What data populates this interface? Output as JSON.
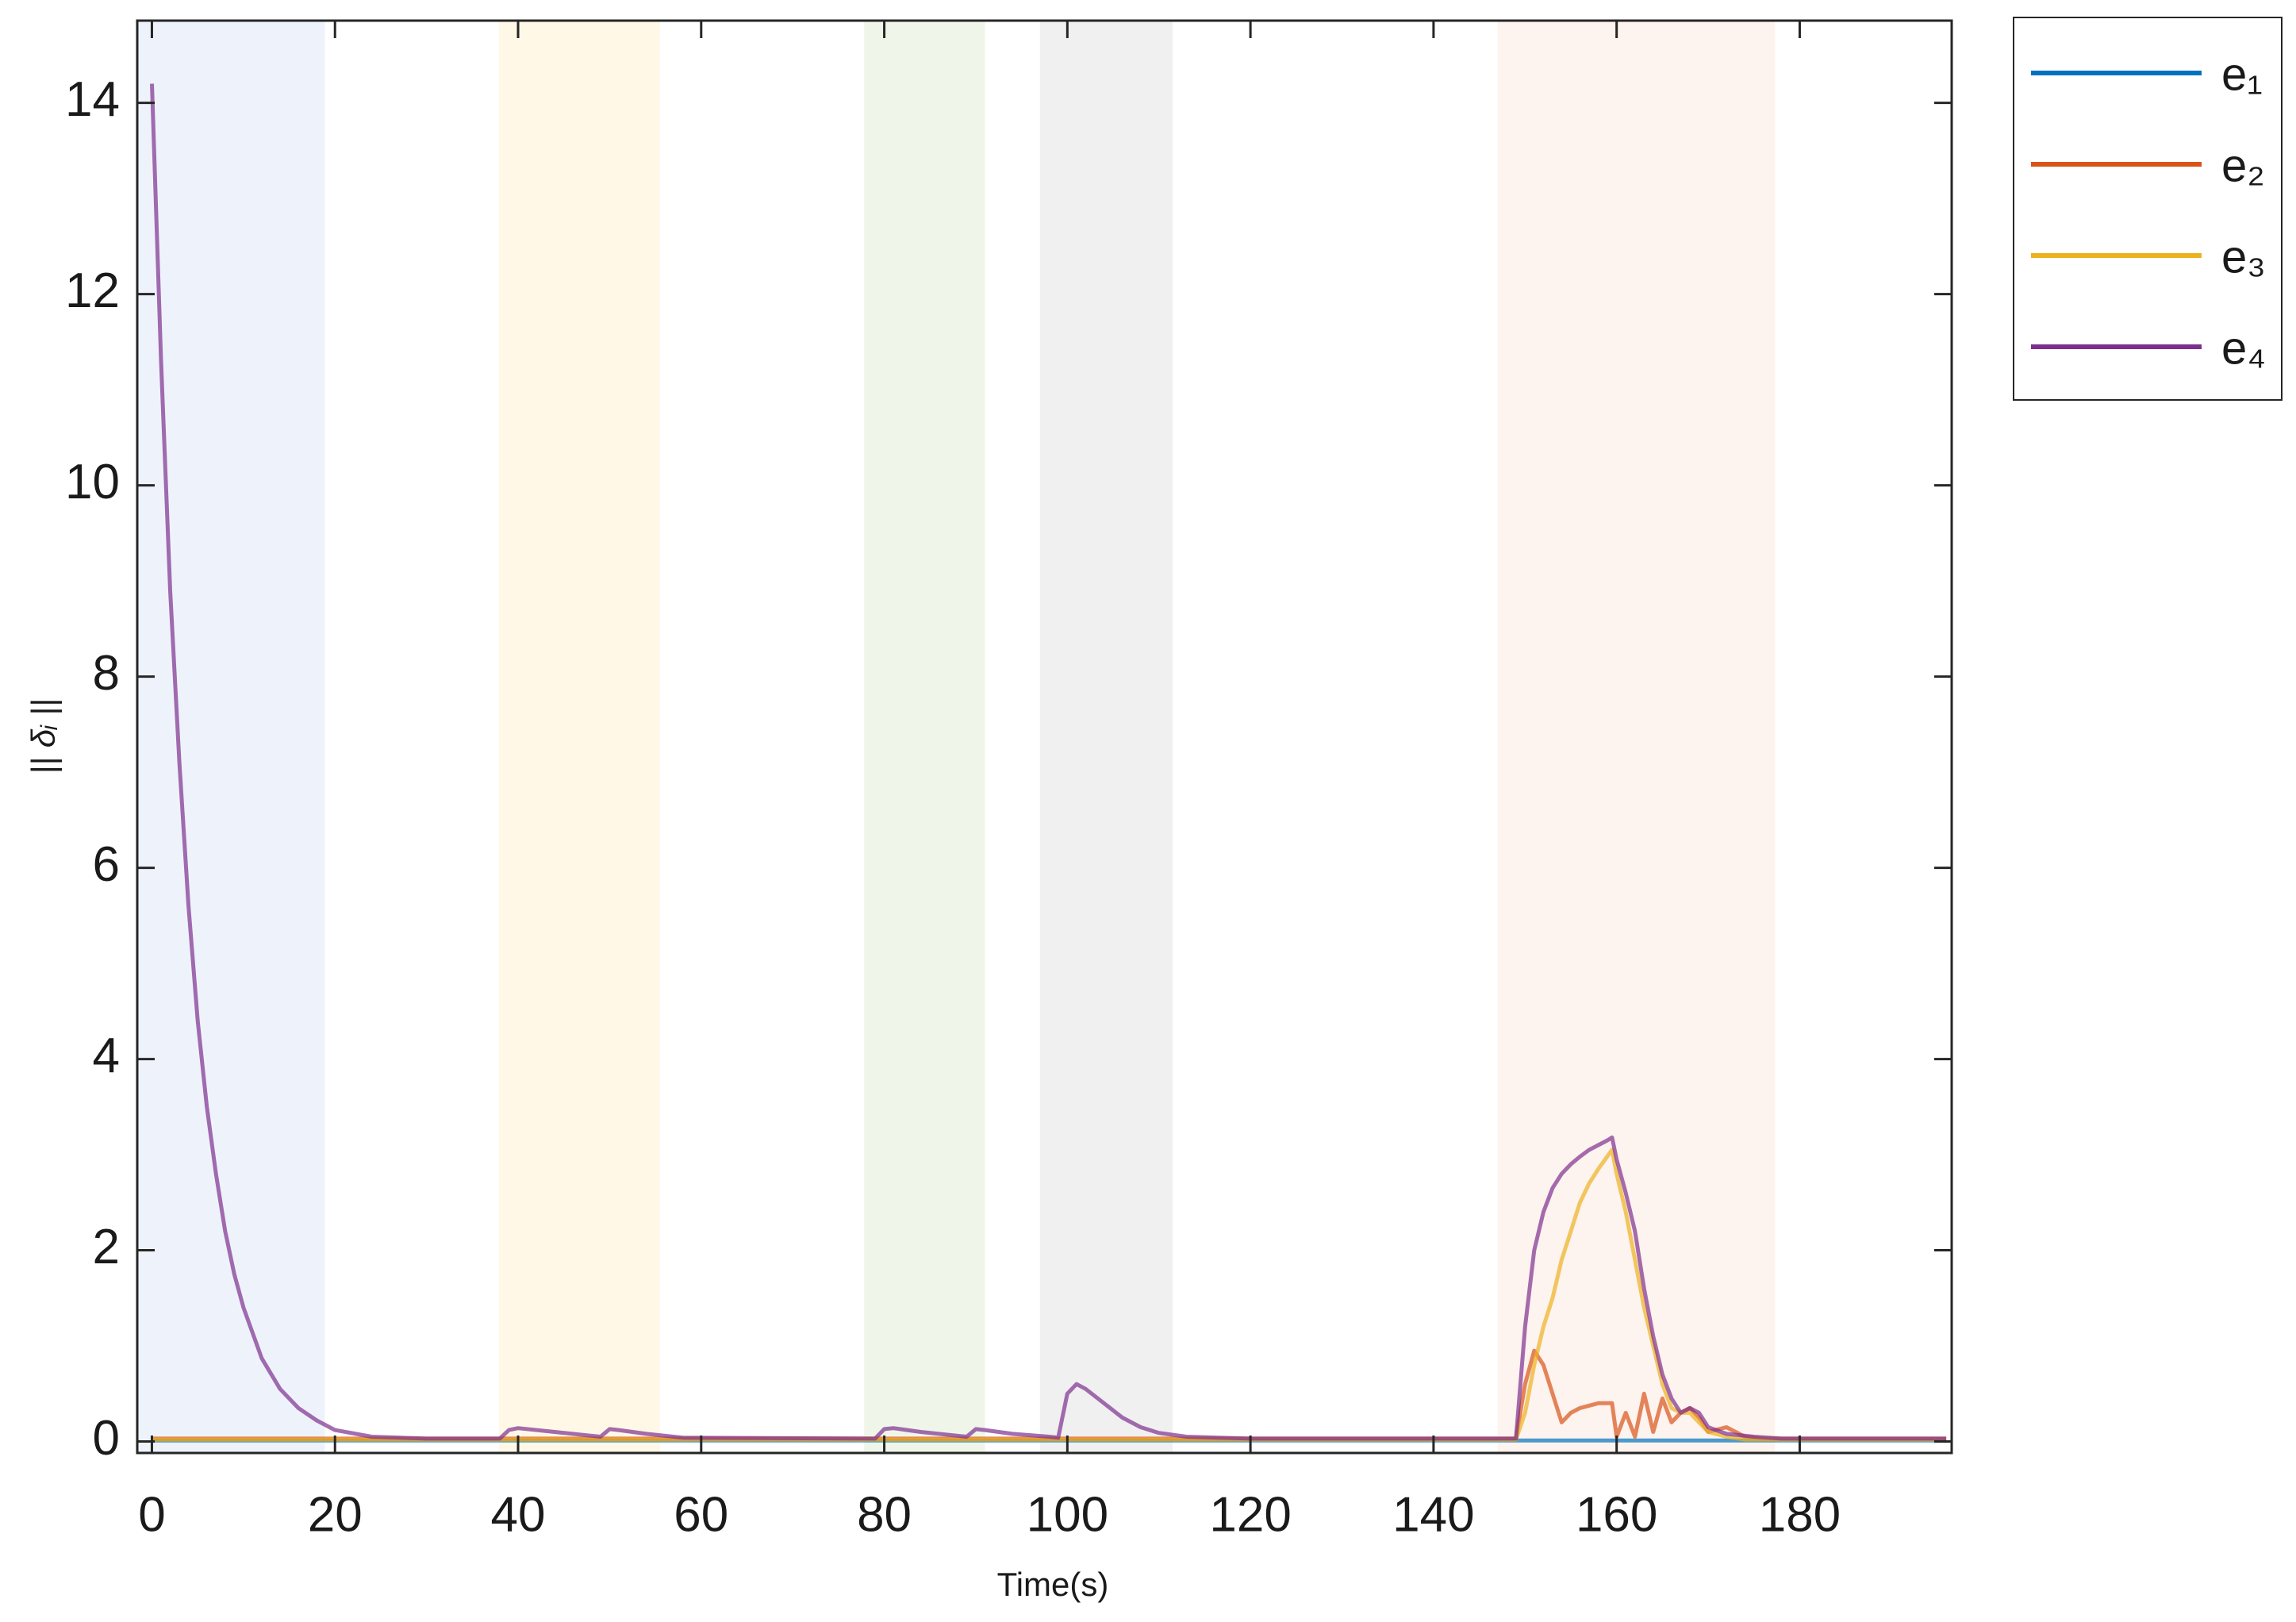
{
  "chart_data": {
    "type": "line",
    "xlabel": "Time(s)",
    "ylabel": "|| δᵢ ||",
    "xlim": [
      -1.6,
      196.6
    ],
    "ylim": [
      -0.12,
      14.86
    ],
    "xticks": [
      0,
      20,
      40,
      60,
      80,
      100,
      120,
      140,
      160,
      180
    ],
    "yticks": [
      0,
      2,
      4,
      6,
      8,
      10,
      12,
      14
    ],
    "legend": "outside-right-top",
    "bands": [
      {
        "x": [
          -1.6,
          18.9
        ],
        "color": "#eef3fb"
      },
      {
        "x": [
          37.9,
          55.5
        ],
        "color": "#fff8e6"
      },
      {
        "x": [
          77.8,
          91
        ],
        "color": "#eff6e9"
      },
      {
        "x": [
          97,
          111.5
        ],
        "color": "#f0f0f0"
      },
      {
        "x": [
          147,
          177.3
        ],
        "color": "#fdf3ef"
      }
    ],
    "series": [
      {
        "name": "e₁",
        "color": "#0072bd",
        "x": [
          0,
          196
        ],
        "values": [
          0.01,
          0.01
        ]
      },
      {
        "name": "e₂",
        "color": "#d95319",
        "x": [
          0,
          149,
          150,
          151,
          152,
          153,
          154,
          155,
          156,
          158,
          159.5,
          160,
          161,
          162,
          163,
          164,
          165,
          166,
          167,
          168,
          169,
          170,
          172,
          174,
          176,
          196
        ],
        "values": [
          0.03,
          0.03,
          0.6,
          0.95,
          0.8,
          0.5,
          0.2,
          0.3,
          0.35,
          0.4,
          0.4,
          0.05,
          0.3,
          0.05,
          0.5,
          0.1,
          0.45,
          0.2,
          0.3,
          0.35,
          0.25,
          0.1,
          0.15,
          0.05,
          0.03,
          0.03
        ]
      },
      {
        "name": "e₃",
        "color": "#edb120",
        "x": [
          0,
          149,
          150,
          151,
          152,
          153,
          154,
          155,
          156,
          157,
          158,
          159.5,
          160,
          161,
          162,
          163,
          164,
          165,
          166,
          167,
          168,
          169,
          170,
          172,
          174,
          196
        ],
        "values": [
          0.02,
          0.02,
          0.3,
          0.8,
          1.2,
          1.5,
          1.9,
          2.2,
          2.5,
          2.7,
          2.85,
          3.05,
          2.8,
          2.4,
          1.9,
          1.4,
          1.0,
          0.6,
          0.35,
          0.3,
          0.3,
          0.2,
          0.1,
          0.05,
          0.02,
          0.02
        ]
      },
      {
        "name": "e₄",
        "color": "#7e2f8e",
        "x": [
          0,
          1,
          2,
          3,
          4,
          5,
          6,
          7,
          8,
          9,
          10,
          12,
          14,
          16,
          18,
          20,
          24,
          30,
          38,
          39,
          40,
          44,
          48,
          49,
          50,
          51,
          54,
          58,
          79,
          80,
          81,
          84,
          88,
          89,
          90,
          91,
          94,
          98,
          99,
          100,
          101,
          102,
          104,
          106,
          108,
          110,
          113,
          120,
          149,
          150,
          151,
          152,
          153,
          154,
          155,
          156,
          157,
          158,
          159,
          159.5,
          160,
          161,
          162,
          163,
          164,
          165,
          166,
          167,
          168,
          169,
          170,
          172,
          175,
          178,
          196
        ],
        "values": [
          14.2,
          11.3,
          8.9,
          7.1,
          5.6,
          4.4,
          3.5,
          2.8,
          2.2,
          1.75,
          1.4,
          0.87,
          0.55,
          0.35,
          0.22,
          0.12,
          0.05,
          0.03,
          0.03,
          0.12,
          0.14,
          0.1,
          0.06,
          0.05,
          0.13,
          0.12,
          0.08,
          0.04,
          0.03,
          0.13,
          0.14,
          0.1,
          0.06,
          0.05,
          0.13,
          0.12,
          0.08,
          0.05,
          0.04,
          0.5,
          0.6,
          0.55,
          0.4,
          0.25,
          0.15,
          0.09,
          0.05,
          0.03,
          0.03,
          1.2,
          2.0,
          2.4,
          2.65,
          2.8,
          2.9,
          2.98,
          3.05,
          3.1,
          3.15,
          3.18,
          2.95,
          2.6,
          2.2,
          1.6,
          1.1,
          0.7,
          0.45,
          0.3,
          0.35,
          0.3,
          0.15,
          0.08,
          0.05,
          0.03,
          0.03
        ]
      }
    ]
  }
}
